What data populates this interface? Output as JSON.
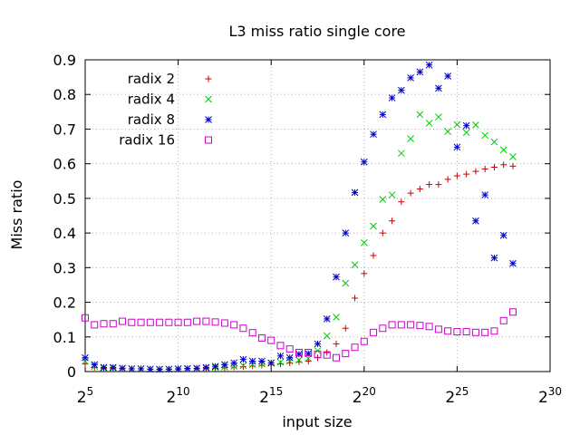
{
  "chart_data": {
    "type": "scatter",
    "title": "L3 miss ratio single core",
    "xlabel": "input size",
    "ylabel": "Miss ratio",
    "x_scale": "log2",
    "xlim": [
      5,
      30
    ],
    "ylim": [
      0,
      0.9
    ],
    "x_ticks": [
      5,
      10,
      15,
      20,
      25,
      30
    ],
    "x_tick_base": "2",
    "y_ticks": [
      0,
      0.1,
      0.2,
      0.3,
      0.4,
      0.5,
      0.6,
      0.7,
      0.8,
      0.9
    ],
    "y_tick_labels": [
      "0",
      "0.1",
      "0.2",
      "0.3",
      "0.4",
      "0.5",
      "0.6",
      "0.7",
      "0.8",
      "0.9"
    ],
    "grid": true,
    "legend_position": "top-left",
    "series": [
      {
        "name": "radix 2",
        "marker": "plus",
        "color": "#cc0000",
        "x": [
          5,
          5.5,
          6,
          6.5,
          7,
          7.5,
          8,
          8.5,
          9,
          9.5,
          10,
          10.5,
          11,
          11.5,
          12,
          12.5,
          13,
          13.5,
          14,
          14.5,
          15,
          15.5,
          16,
          16.5,
          17,
          17.5,
          18,
          18.5,
          19,
          19.5,
          20,
          20.5,
          21,
          21.5,
          22,
          22.5,
          23,
          23.5,
          24,
          24.5,
          25,
          25.5,
          26,
          26.5,
          27,
          27.5,
          28
        ],
        "y": [
          0.022,
          0.012,
          0.009,
          0.009,
          0.008,
          0.008,
          0.008,
          0.007,
          0.007,
          0.007,
          0.007,
          0.008,
          0.008,
          0.009,
          0.01,
          0.011,
          0.013,
          0.014,
          0.016,
          0.018,
          0.02,
          0.022,
          0.025,
          0.028,
          0.03,
          0.04,
          0.055,
          0.08,
          0.125,
          0.212,
          0.283,
          0.335,
          0.4,
          0.435,
          0.49,
          0.515,
          0.527,
          0.54,
          0.54,
          0.555,
          0.565,
          0.57,
          0.578,
          0.585,
          0.59,
          0.597,
          0.593
        ]
      },
      {
        "name": "radix 4",
        "marker": "cross",
        "color": "#00cc00",
        "x": [
          5,
          5.5,
          6,
          6.5,
          7,
          7.5,
          8,
          8.5,
          9,
          9.5,
          10,
          10.5,
          11,
          11.5,
          12,
          12.5,
          13,
          13.5,
          14,
          14.5,
          15,
          15.5,
          16,
          16.5,
          17,
          17.5,
          18,
          18.5,
          19,
          19.5,
          20,
          20.5,
          21,
          21.5,
          22,
          22.5,
          23,
          23.5,
          24,
          24.5,
          25,
          25.5,
          26,
          26.5,
          27,
          27.5,
          28
        ],
        "y": [
          0.03,
          0.015,
          0.01,
          0.01,
          0.009,
          0.008,
          0.008,
          0.007,
          0.007,
          0.007,
          0.007,
          0.008,
          0.009,
          0.01,
          0.012,
          0.013,
          0.015,
          0.017,
          0.02,
          0.022,
          0.024,
          0.027,
          0.03,
          0.033,
          0.038,
          0.06,
          0.103,
          0.157,
          0.255,
          0.308,
          0.372,
          0.42,
          0.497,
          0.51,
          0.63,
          0.672,
          0.742,
          0.717,
          0.735,
          0.693,
          0.713,
          0.69,
          0.712,
          0.682,
          0.663,
          0.64,
          0.62
        ]
      },
      {
        "name": "radix 8",
        "marker": "star",
        "color": "#0000cc",
        "x": [
          5,
          5.5,
          6,
          6.5,
          7,
          7.5,
          8,
          8.5,
          9,
          9.5,
          10,
          10.5,
          11,
          11.5,
          12,
          12.5,
          13,
          13.5,
          14,
          14.5,
          15,
          15.5,
          16,
          16.5,
          17,
          17.5,
          18,
          18.5,
          19,
          19.5,
          20,
          20.5,
          21,
          21.5,
          22,
          22.5,
          23,
          23.5,
          24,
          24.5,
          25,
          25.5,
          26,
          26.5,
          27,
          27.5,
          28
        ],
        "y": [
          0.04,
          0.02,
          0.012,
          0.012,
          0.01,
          0.008,
          0.008,
          0.007,
          0.006,
          0.007,
          0.008,
          0.009,
          0.01,
          0.012,
          0.015,
          0.02,
          0.025,
          0.035,
          0.03,
          0.03,
          0.025,
          0.045,
          0.04,
          0.05,
          0.052,
          0.08,
          0.152,
          0.273,
          0.4,
          0.517,
          0.605,
          0.685,
          0.742,
          0.79,
          0.812,
          0.848,
          0.865,
          0.885,
          0.818,
          0.853,
          0.648,
          0.71,
          0.435,
          0.51,
          0.328,
          0.393,
          0.312
        ]
      },
      {
        "name": "radix 16",
        "marker": "square",
        "color": "#cc00cc",
        "x": [
          5,
          5.5,
          6,
          6.5,
          7,
          7.5,
          8,
          8.5,
          9,
          9.5,
          10,
          10.5,
          11,
          11.5,
          12,
          12.5,
          13,
          13.5,
          14,
          14.5,
          15,
          15.5,
          16,
          16.5,
          17,
          17.5,
          18,
          18.5,
          19,
          19.5,
          20,
          20.5,
          21,
          21.5,
          22,
          22.5,
          23,
          23.5,
          24,
          24.5,
          25,
          25.5,
          26,
          26.5,
          27,
          27.5,
          28
        ],
        "y": [
          0.155,
          0.135,
          0.138,
          0.138,
          0.145,
          0.142,
          0.142,
          0.142,
          0.142,
          0.142,
          0.142,
          0.142,
          0.145,
          0.145,
          0.143,
          0.14,
          0.135,
          0.125,
          0.112,
          0.097,
          0.09,
          0.075,
          0.065,
          0.055,
          0.055,
          0.05,
          0.048,
          0.04,
          0.052,
          0.07,
          0.087,
          0.113,
          0.125,
          0.135,
          0.135,
          0.135,
          0.133,
          0.13,
          0.122,
          0.117,
          0.115,
          0.115,
          0.113,
          0.113,
          0.117,
          0.147,
          0.172
        ]
      }
    ]
  }
}
